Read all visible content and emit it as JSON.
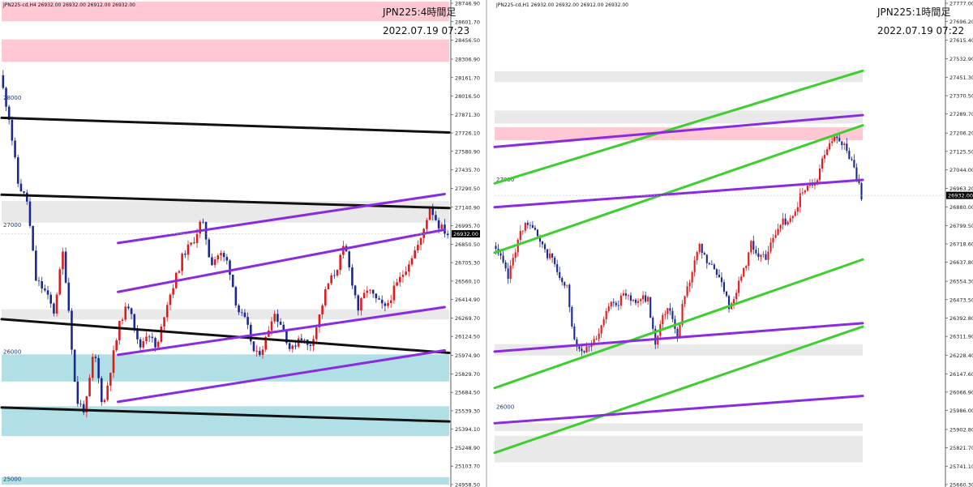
{
  "chart_data": [
    {
      "type": "candlestick",
      "symbol_info": "JPN225-cd,H4  26932.00 26932.00 26912.00 26932.00",
      "title_overlay": "JPN225:4時間足",
      "timestamp": "2022.07.19 07:23",
      "y_tick_labels": [
        "28746.90",
        "28601.70",
        "28456.50",
        "28306.90",
        "28161.70",
        "28016.50",
        "27871.30",
        "27726.10",
        "27580.90",
        "27435.70",
        "27290.50",
        "27140.90",
        "26995.70",
        "26850.50",
        "26705.30",
        "26560.10",
        "26414.90",
        "26269.70",
        "26124.50",
        "25974.90",
        "25829.70",
        "25684.50",
        "25539.30",
        "25394.10",
        "25248.90",
        "25103.70",
        "24958.50"
      ],
      "round_level_labels": [
        "28000",
        "27000",
        "26000",
        "25000"
      ],
      "ylim": [
        24958.5,
        28746.9
      ],
      "current_price": "26932.00",
      "zones": [
        {
          "color": "pink",
          "from": 28605,
          "to": 28760
        },
        {
          "color": "pink",
          "from": 28285,
          "to": 28462
        },
        {
          "color": "lightgray",
          "from": 27020,
          "to": 27190
        },
        {
          "color": "lightgray",
          "from": 26258,
          "to": 26338
        },
        {
          "color": "lightblue",
          "from": 25770,
          "to": 25983
        },
        {
          "color": "lightblue",
          "from": 25340,
          "to": 25575
        },
        {
          "color": "lightblue",
          "from": 24958,
          "to": 25017
        }
      ],
      "trendlines": [
        {
          "color": "black",
          "p1": [
            0.0,
            27845
          ],
          "p2": [
            1.0,
            27730
          ]
        },
        {
          "color": "black",
          "p1": [
            0.0,
            27240
          ],
          "p2": [
            1.0,
            27135
          ]
        },
        {
          "color": "black",
          "p1": [
            0.0,
            26260
          ],
          "p2": [
            1.0,
            25995
          ]
        },
        {
          "color": "black",
          "p1": [
            0.0,
            25565
          ],
          "p2": [
            1.0,
            25455
          ]
        },
        {
          "color": "purple",
          "p1": [
            0.26,
            26860
          ],
          "p2": [
            0.99,
            27245
          ]
        },
        {
          "color": "purple",
          "p1": [
            0.26,
            26475
          ],
          "p2": [
            0.99,
            26965
          ]
        },
        {
          "color": "purple",
          "p1": [
            0.26,
            25980
          ],
          "p2": [
            0.99,
            26355
          ]
        },
        {
          "color": "purple",
          "p1": [
            0.26,
            25610
          ],
          "p2": [
            0.99,
            26015
          ]
        }
      ],
      "price_path": [
        [
          0.0,
          28180
        ],
        [
          0.02,
          27850
        ],
        [
          0.04,
          27330
        ],
        [
          0.06,
          27190
        ],
        [
          0.08,
          26570
        ],
        [
          0.1,
          26480
        ],
        [
          0.12,
          26320
        ],
        [
          0.14,
          26780
        ],
        [
          0.15,
          26480
        ],
        [
          0.17,
          25620
        ],
        [
          0.19,
          25540
        ],
        [
          0.21,
          26020
        ],
        [
          0.23,
          25560
        ],
        [
          0.25,
          25930
        ],
        [
          0.27,
          26270
        ],
        [
          0.29,
          26390
        ],
        [
          0.31,
          26020
        ],
        [
          0.33,
          26170
        ],
        [
          0.35,
          26010
        ],
        [
          0.37,
          26360
        ],
        [
          0.39,
          26560
        ],
        [
          0.41,
          26780
        ],
        [
          0.43,
          26860
        ],
        [
          0.45,
          27040
        ],
        [
          0.46,
          26900
        ],
        [
          0.47,
          26700
        ],
        [
          0.49,
          26780
        ],
        [
          0.51,
          26700
        ],
        [
          0.53,
          26340
        ],
        [
          0.55,
          26230
        ],
        [
          0.57,
          25960
        ],
        [
          0.59,
          26060
        ],
        [
          0.61,
          26320
        ],
        [
          0.63,
          26210
        ],
        [
          0.65,
          26000
        ],
        [
          0.67,
          26140
        ],
        [
          0.69,
          26030
        ],
        [
          0.71,
          26240
        ],
        [
          0.73,
          26520
        ],
        [
          0.75,
          26640
        ],
        [
          0.77,
          26840
        ],
        [
          0.78,
          26660
        ],
        [
          0.8,
          26340
        ],
        [
          0.82,
          26500
        ],
        [
          0.84,
          26410
        ],
        [
          0.86,
          26340
        ],
        [
          0.88,
          26490
        ],
        [
          0.9,
          26620
        ],
        [
          0.92,
          26760
        ],
        [
          0.94,
          26880
        ],
        [
          0.96,
          27150
        ],
        [
          0.98,
          27000
        ],
        [
          1.0,
          26932
        ]
      ]
    },
    {
      "type": "candlestick",
      "symbol_info": "JPN225-cd,H1  26932.00 26932.00 26912.00 26932.00",
      "title_overlay": "JPN225:1時間足",
      "timestamp": "2022.07.19 07:22",
      "y_tick_labels": [
        "27777.00",
        "27696.20",
        "27615.40",
        "27532.90",
        "27451.30",
        "27370.50",
        "27289.70",
        "27206.20",
        "27125.50",
        "27044.00",
        "26963.20",
        "26880.00",
        "26799.50",
        "26718.60",
        "26637.80",
        "26554.30",
        "26473.50",
        "26392.80",
        "26311.90",
        "26228.40",
        "26147.60",
        "26066.90",
        "25986.00",
        "25902.80",
        "25821.70",
        "25741.10",
        "25660.30"
      ],
      "round_level_labels": [
        "27000",
        "26000"
      ],
      "ylim": [
        25660.3,
        27777.0
      ],
      "current_price": "26932.00",
      "zones": [
        {
          "color": "lightgray",
          "from": 27430,
          "to": 27478
        },
        {
          "color": "lightgray",
          "from": 27248,
          "to": 27305
        },
        {
          "color": "pink",
          "from": 27175,
          "to": 27232
        },
        {
          "color": "lightgray",
          "from": 26228,
          "to": 26278
        },
        {
          "color": "lightgray",
          "from": 25895,
          "to": 25930
        },
        {
          "color": "lightgray",
          "from": 25758,
          "to": 25875
        }
      ],
      "trendlines": [
        {
          "color": "green",
          "p1": [
            0.0,
            26985
          ],
          "p2": [
            1.0,
            27480
          ]
        },
        {
          "color": "green",
          "p1": [
            0.0,
            26680
          ],
          "p2": [
            1.0,
            27240
          ]
        },
        {
          "color": "green",
          "p1": [
            0.0,
            26085
          ],
          "p2": [
            1.0,
            26650
          ]
        },
        {
          "color": "green",
          "p1": [
            0.0,
            25800
          ],
          "p2": [
            1.0,
            26355
          ]
        },
        {
          "color": "purple",
          "p1": [
            0.0,
            27145
          ],
          "p2": [
            1.0,
            27285
          ]
        },
        {
          "color": "purple",
          "p1": [
            0.0,
            26880
          ],
          "p2": [
            1.0,
            27000
          ]
        },
        {
          "color": "purple",
          "p1": [
            0.0,
            26245
          ],
          "p2": [
            1.0,
            26370
          ]
        },
        {
          "color": "purple",
          "p1": [
            0.0,
            25930
          ],
          "p2": [
            1.0,
            26050
          ]
        }
      ],
      "price_path": [
        [
          0.0,
          26710
        ],
        [
          0.02,
          26650
        ],
        [
          0.04,
          26570
        ],
        [
          0.06,
          26700
        ],
        [
          0.08,
          26790
        ],
        [
          0.1,
          26820
        ],
        [
          0.12,
          26740
        ],
        [
          0.14,
          26680
        ],
        [
          0.16,
          26660
        ],
        [
          0.18,
          26560
        ],
        [
          0.2,
          26520
        ],
        [
          0.22,
          26300
        ],
        [
          0.24,
          26250
        ],
        [
          0.26,
          26280
        ],
        [
          0.28,
          26290
        ],
        [
          0.3,
          26380
        ],
        [
          0.32,
          26480
        ],
        [
          0.34,
          26460
        ],
        [
          0.36,
          26500
        ],
        [
          0.38,
          26470
        ],
        [
          0.4,
          26480
        ],
        [
          0.42,
          26470
        ],
        [
          0.44,
          26280
        ],
        [
          0.46,
          26420
        ],
        [
          0.48,
          26430
        ],
        [
          0.5,
          26320
        ],
        [
          0.52,
          26500
        ],
        [
          0.54,
          26600
        ],
        [
          0.56,
          26700
        ],
        [
          0.58,
          26640
        ],
        [
          0.6,
          26600
        ],
        [
          0.62,
          26560
        ],
        [
          0.64,
          26440
        ],
        [
          0.66,
          26520
        ],
        [
          0.68,
          26600
        ],
        [
          0.7,
          26720
        ],
        [
          0.72,
          26670
        ],
        [
          0.74,
          26650
        ],
        [
          0.76,
          26740
        ],
        [
          0.78,
          26820
        ],
        [
          0.8,
          26800
        ],
        [
          0.82,
          26860
        ],
        [
          0.84,
          26960
        ],
        [
          0.86,
          26970
        ],
        [
          0.88,
          27010
        ],
        [
          0.9,
          27120
        ],
        [
          0.92,
          27180
        ],
        [
          0.94,
          27170
        ],
        [
          0.96,
          27140
        ],
        [
          0.98,
          27050
        ],
        [
          1.0,
          26932
        ]
      ]
    }
  ]
}
